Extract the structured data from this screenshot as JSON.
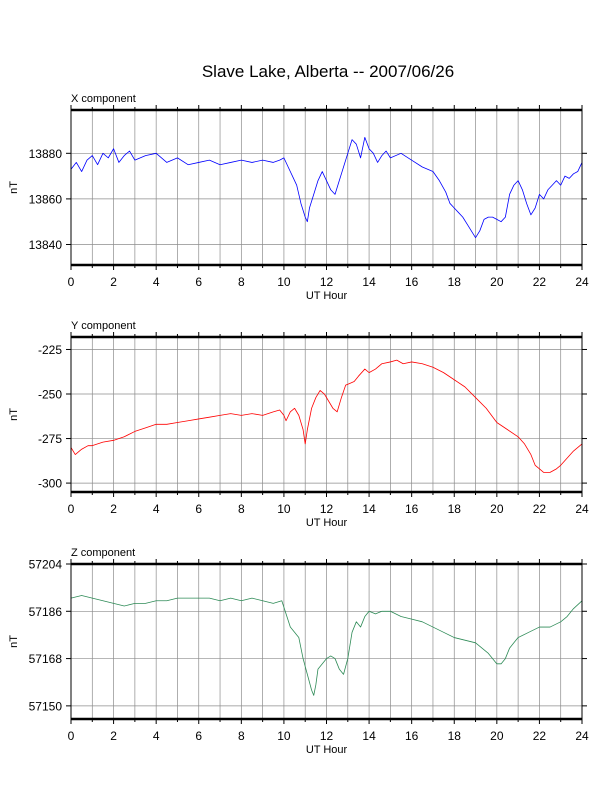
{
  "figure": {
    "title": "Slave Lake, Alberta -- 2007/06/26"
  },
  "chart_data": [
    {
      "type": "line",
      "title": "X component",
      "xlabel": "UT Hour",
      "ylabel": "nT",
      "xlim": [
        0,
        24
      ],
      "ylim": [
        13831,
        13899
      ],
      "xticks": [
        0,
        2,
        4,
        6,
        8,
        10,
        12,
        14,
        16,
        18,
        20,
        22,
        24
      ],
      "yticks": [
        13840,
        13860,
        13880
      ],
      "grid": true,
      "series": [
        {
          "color": "#0000ff",
          "x": [
            0,
            0.25,
            0.5,
            0.75,
            1,
            1.25,
            1.5,
            1.75,
            2,
            2.25,
            2.5,
            2.75,
            3,
            3.5,
            4,
            4.5,
            5,
            5.5,
            6,
            6.5,
            7,
            7.5,
            8,
            8.5,
            9,
            9.5,
            9.8,
            10,
            10.2,
            10.4,
            10.6,
            10.8,
            11,
            11.1,
            11.2,
            11.4,
            11.6,
            11.8,
            12,
            12.2,
            12.4,
            12.6,
            12.8,
            13,
            13.2,
            13.4,
            13.6,
            13.8,
            14,
            14.2,
            14.4,
            14.6,
            14.8,
            15,
            15.5,
            16,
            16.5,
            17,
            17.3,
            17.6,
            17.8,
            18,
            18.2,
            18.4,
            18.6,
            18.8,
            19,
            19.2,
            19.4,
            19.6,
            19.8,
            20,
            20.2,
            20.4,
            20.6,
            20.8,
            21,
            21.2,
            21.4,
            21.6,
            21.8,
            22,
            22.2,
            22.4,
            22.6,
            22.8,
            23,
            23.2,
            23.4,
            23.6,
            23.8,
            24
          ],
          "y": [
            13873,
            13876,
            13872,
            13877,
            13879,
            13875,
            13880,
            13878,
            13882,
            13876,
            13879,
            13881,
            13877,
            13879,
            13880,
            13876,
            13878,
            13875,
            13876,
            13877,
            13875,
            13876,
            13877,
            13876,
            13877,
            13876,
            13877,
            13878,
            13874,
            13870,
            13866,
            13858,
            13852,
            13850,
            13856,
            13862,
            13868,
            13872,
            13868,
            13864,
            13862,
            13868,
            13874,
            13880,
            13886,
            13884,
            13878,
            13887,
            13882,
            13880,
            13876,
            13879,
            13881,
            13878,
            13880,
            13877,
            13874,
            13872,
            13868,
            13863,
            13858,
            13856,
            13854,
            13852,
            13849,
            13846,
            13843,
            13846,
            13851,
            13852,
            13852,
            13851,
            13850,
            13852,
            13862,
            13866,
            13868,
            13864,
            13858,
            13853,
            13856,
            13862,
            13860,
            13864,
            13866,
            13868,
            13866,
            13870,
            13869,
            13871,
            13872,
            13876
          ]
        }
      ]
    },
    {
      "type": "line",
      "title": "Y component",
      "xlabel": "UT Hour",
      "ylabel": "nT",
      "xlim": [
        0,
        24
      ],
      "ylim": [
        -305,
        -218
      ],
      "xticks": [
        0,
        2,
        4,
        6,
        8,
        10,
        12,
        14,
        16,
        18,
        20,
        22,
        24
      ],
      "yticks": [
        -225,
        -250,
        -275,
        -300
      ],
      "grid": true,
      "series": [
        {
          "color": "#ff0000",
          "x": [
            0,
            0.2,
            0.5,
            0.8,
            1,
            1.5,
            2,
            2.5,
            3,
            3.5,
            4,
            4.5,
            5,
            5.5,
            6,
            6.5,
            7,
            7.5,
            8,
            8.5,
            9,
            9.5,
            9.8,
            10,
            10.1,
            10.3,
            10.5,
            10.7,
            10.9,
            11,
            11.1,
            11.3,
            11.5,
            11.7,
            11.9,
            12.1,
            12.3,
            12.5,
            12.7,
            12.9,
            13.1,
            13.3,
            13.5,
            13.8,
            14,
            14.3,
            14.6,
            15,
            15.3,
            15.6,
            16,
            16.5,
            17,
            17.5,
            18,
            18.5,
            19,
            19.5,
            20,
            20.5,
            21,
            21.3,
            21.6,
            21.8,
            22,
            22.2,
            22.5,
            22.8,
            23,
            23.3,
            23.6,
            24
          ],
          "y": [
            -280,
            -284,
            -281,
            -279,
            -279,
            -277,
            -276,
            -274,
            -271,
            -269,
            -267,
            -267,
            -266,
            -265,
            -264,
            -263,
            -262,
            -261,
            -262,
            -261,
            -262,
            -260,
            -259,
            -262,
            -265,
            -260,
            -258,
            -262,
            -270,
            -278,
            -270,
            -258,
            -252,
            -248,
            -250,
            -254,
            -258,
            -260,
            -252,
            -245,
            -244,
            -243,
            -240,
            -236,
            -238,
            -236,
            -233,
            -232,
            -231,
            -233,
            -232,
            -233,
            -235,
            -238,
            -242,
            -246,
            -252,
            -258,
            -266,
            -270,
            -274,
            -278,
            -284,
            -290,
            -292,
            -294,
            -294,
            -292,
            -290,
            -286,
            -282,
            -278
          ]
        }
      ]
    },
    {
      "type": "line",
      "title": "Z component",
      "xlabel": "UT Hour",
      "ylabel": "nT",
      "xlim": [
        0,
        24
      ],
      "ylim": [
        57145,
        57204
      ],
      "xticks": [
        0,
        2,
        4,
        6,
        8,
        10,
        12,
        14,
        16,
        18,
        20,
        22,
        24
      ],
      "yticks": [
        57150,
        57168,
        57186,
        57204
      ],
      "grid": true,
      "series": [
        {
          "color": "#2e8b57",
          "x": [
            0,
            0.5,
            1,
            1.5,
            2,
            2.5,
            3,
            3.5,
            4,
            4.5,
            5,
            5.5,
            6,
            6.5,
            7,
            7.5,
            8,
            8.5,
            9,
            9.5,
            9.9,
            10.1,
            10.3,
            10.5,
            10.7,
            10.9,
            11.1,
            11.3,
            11.4,
            11.5,
            11.6,
            11.8,
            12,
            12.2,
            12.4,
            12.6,
            12.8,
            13,
            13.2,
            13.4,
            13.6,
            13.8,
            14,
            14.3,
            14.6,
            15,
            15.5,
            16,
            16.5,
            17,
            17.5,
            18,
            18.5,
            19,
            19.3,
            19.6,
            19.8,
            20,
            20.2,
            20.4,
            20.6,
            20.8,
            21,
            21.5,
            22,
            22.5,
            23,
            23.3,
            23.6,
            24
          ],
          "y": [
            57191,
            57192,
            57191,
            57190,
            57189,
            57188,
            57189,
            57189,
            57190,
            57190,
            57191,
            57191,
            57191,
            57191,
            57190,
            57191,
            57190,
            57191,
            57190,
            57189,
            57190,
            57185,
            57180,
            57178,
            57176,
            57168,
            57162,
            57156,
            57154,
            57158,
            57164,
            57166,
            57168,
            57169,
            57168,
            57164,
            57162,
            57168,
            57178,
            57182,
            57180,
            57184,
            57186,
            57185,
            57186,
            57186,
            57184,
            57183,
            57182,
            57180,
            57178,
            57176,
            57175,
            57174,
            57172,
            57170,
            57168,
            57166,
            57166,
            57168,
            57172,
            57174,
            57176,
            57178,
            57180,
            57180,
            57182,
            57184,
            57187,
            57190
          ]
        }
      ]
    }
  ]
}
